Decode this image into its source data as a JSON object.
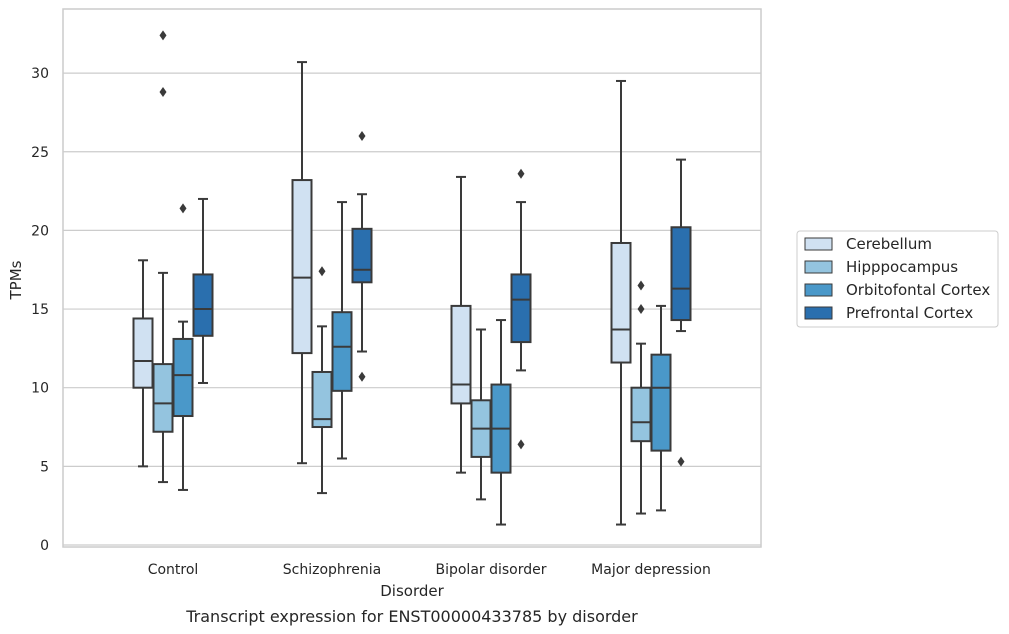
{
  "caption": "Transcript expression for ENST00000433785 by disorder",
  "chart_data": {
    "type": "box",
    "xlabel": "Disorder",
    "ylabel": "TPMs",
    "ylim": [
      0,
      34
    ],
    "yticks": [
      0,
      5,
      10,
      15,
      20,
      25,
      30
    ],
    "grid": "horizontal",
    "legend_position": "right",
    "categories": [
      "Control",
      "Schizophrenia",
      "Bipolar disorder",
      "Major depression"
    ],
    "series": [
      {
        "name": "Cerebellum",
        "color": "#d0e1f2",
        "boxes": [
          {
            "whislo": 5.0,
            "q1": 10.0,
            "med": 11.7,
            "q3": 14.4,
            "whishi": 18.1,
            "fliers": []
          },
          {
            "whislo": 5.2,
            "q1": 12.2,
            "med": 17.0,
            "q3": 23.2,
            "whishi": 30.7,
            "fliers": []
          },
          {
            "whislo": 4.6,
            "q1": 9.0,
            "med": 10.2,
            "q3": 15.2,
            "whishi": 23.4,
            "fliers": []
          },
          {
            "whislo": 1.3,
            "q1": 11.6,
            "med": 13.7,
            "q3": 19.2,
            "whishi": 29.5,
            "fliers": []
          }
        ]
      },
      {
        "name": "Hipppocampus",
        "color": "#94c4df",
        "boxes": [
          {
            "whislo": 4.0,
            "q1": 7.2,
            "med": 9.0,
            "q3": 11.5,
            "whishi": 17.3,
            "fliers": [
              28.8,
              32.4
            ]
          },
          {
            "whislo": 3.3,
            "q1": 7.5,
            "med": 8.0,
            "q3": 11.0,
            "whishi": 13.9,
            "fliers": [
              17.4
            ]
          },
          {
            "whislo": 2.9,
            "q1": 5.6,
            "med": 7.4,
            "q3": 9.2,
            "whishi": 13.7,
            "fliers": []
          },
          {
            "whislo": 2.0,
            "q1": 6.6,
            "med": 7.8,
            "q3": 10.0,
            "whishi": 12.8,
            "fliers": [
              15.0,
              16.5
            ]
          }
        ]
      },
      {
        "name": "Orbitofontal Cortex",
        "color": "#4a98c9",
        "boxes": [
          {
            "whislo": 3.5,
            "q1": 8.2,
            "med": 10.8,
            "q3": 13.1,
            "whishi": 14.2,
            "fliers": [
              21.4
            ]
          },
          {
            "whislo": 5.5,
            "q1": 9.8,
            "med": 12.6,
            "q3": 14.8,
            "whishi": 21.8,
            "fliers": []
          },
          {
            "whislo": 1.3,
            "q1": 4.6,
            "med": 7.4,
            "q3": 10.2,
            "whishi": 14.3,
            "fliers": []
          },
          {
            "whislo": 2.2,
            "q1": 6.0,
            "med": 10.0,
            "q3": 12.1,
            "whishi": 15.2,
            "fliers": []
          }
        ]
      },
      {
        "name": "Prefrontal Cortex",
        "color": "#2a6fae",
        "boxes": [
          {
            "whislo": 10.3,
            "q1": 13.3,
            "med": 15.0,
            "q3": 17.2,
            "whishi": 22.0,
            "fliers": []
          },
          {
            "whislo": 12.3,
            "q1": 16.7,
            "med": 17.5,
            "q3": 20.1,
            "whishi": 22.3,
            "fliers": [
              10.7,
              26.0
            ]
          },
          {
            "whislo": 11.1,
            "q1": 12.9,
            "med": 15.6,
            "q3": 17.2,
            "whishi": 21.8,
            "fliers": [
              6.4,
              23.6
            ]
          },
          {
            "whislo": 13.6,
            "q1": 14.3,
            "med": 16.3,
            "q3": 20.2,
            "whishi": 24.5,
            "fliers": [
              5.3
            ]
          }
        ]
      }
    ]
  }
}
